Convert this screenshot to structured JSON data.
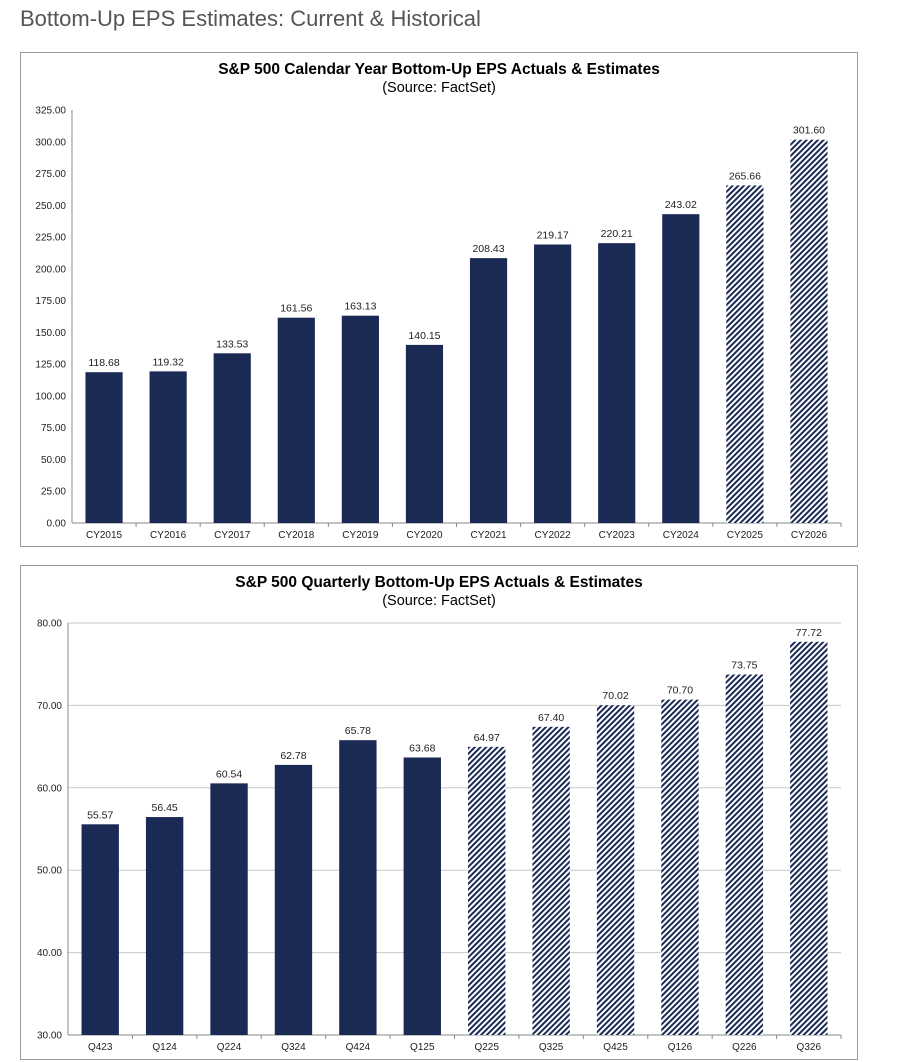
{
  "page": {
    "title": "Bottom-Up EPS Estimates: Current & Historical"
  },
  "colors": {
    "actual": "#1b2a55",
    "estimate_hatch": "#1b2a55",
    "grid": "#c8c8c8",
    "axis_text": "#222222"
  },
  "chart_data": [
    {
      "type": "bar",
      "title": "S&P 500 Calendar Year Bottom-Up EPS Actuals & Estimates",
      "subtitle": "(Source: FactSet)",
      "xlabel": "",
      "ylabel": "",
      "ylim": [
        0,
        325
      ],
      "ytick_step": 25,
      "ytick_labels": [
        "0.00",
        "25.00",
        "50.00",
        "75.00",
        "100.00",
        "125.00",
        "150.00",
        "175.00",
        "200.00",
        "225.00",
        "250.00",
        "275.00",
        "300.00",
        "325.00"
      ],
      "grid": false,
      "legend": "none",
      "categories": [
        "CY2015",
        "CY2016",
        "CY2017",
        "CY2018",
        "CY2019",
        "CY2020",
        "CY2021",
        "CY2022",
        "CY2023",
        "CY2024",
        "CY2025",
        "CY2026"
      ],
      "values": [
        118.68,
        119.32,
        133.53,
        161.56,
        163.13,
        140.15,
        208.43,
        219.17,
        220.21,
        243.02,
        265.66,
        301.6
      ],
      "labels": [
        "118.68",
        "119.32",
        "133.53",
        "161.56",
        "163.13",
        "140.15",
        "208.43",
        "219.17",
        "220.21",
        "243.02",
        "265.66",
        "301.60"
      ],
      "estimate": [
        false,
        false,
        false,
        false,
        false,
        false,
        false,
        false,
        false,
        false,
        true,
        true
      ]
    },
    {
      "type": "bar",
      "title": "S&P 500 Quarterly Bottom-Up EPS Actuals & Estimates",
      "subtitle": "(Source: FactSet)",
      "xlabel": "",
      "ylabel": "",
      "ylim": [
        30,
        80
      ],
      "ytick_step": 10,
      "ytick_labels": [
        "30.00",
        "40.00",
        "50.00",
        "60.00",
        "70.00",
        "80.00"
      ],
      "grid": true,
      "legend": "none",
      "categories": [
        "Q423",
        "Q124",
        "Q224",
        "Q324",
        "Q424",
        "Q125",
        "Q225",
        "Q325",
        "Q425",
        "Q126",
        "Q226",
        "Q326"
      ],
      "values": [
        55.57,
        56.45,
        60.54,
        62.78,
        65.78,
        63.68,
        64.97,
        67.4,
        70.02,
        70.7,
        73.75,
        77.72
      ],
      "labels": [
        "55.57",
        "56.45",
        "60.54",
        "62.78",
        "65.78",
        "63.68",
        "64.97",
        "67.40",
        "70.02",
        "70.70",
        "73.75",
        "77.72"
      ],
      "estimate": [
        false,
        false,
        false,
        false,
        false,
        false,
        true,
        true,
        true,
        true,
        true,
        true
      ]
    }
  ]
}
